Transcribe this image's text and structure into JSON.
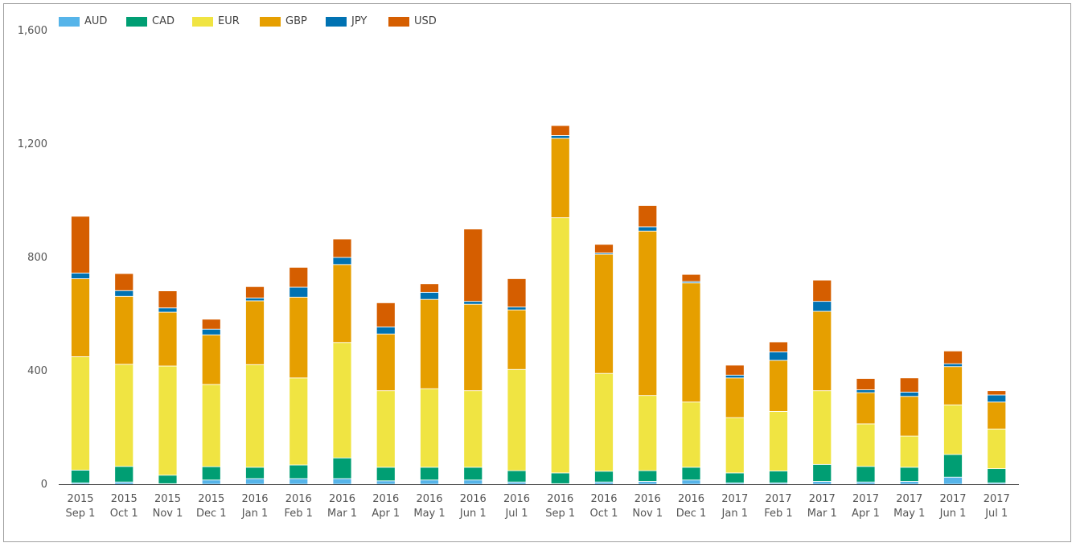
{
  "chart_data": {
    "type": "bar",
    "stacked": true,
    "title": "",
    "xlabel": "",
    "ylabel": "",
    "ylim": [
      0,
      1600
    ],
    "yticks": [
      "0",
      "400",
      "800",
      "1,200",
      "1,600"
    ],
    "ytick_values": [
      0,
      400,
      800,
      1200,
      1600
    ],
    "grid": false,
    "legend_position": "top-left",
    "categories": [
      [
        "2015",
        "Sep 1"
      ],
      [
        "2015",
        "Oct 1"
      ],
      [
        "2015",
        "Nov 1"
      ],
      [
        "2015",
        "Dec 1"
      ],
      [
        "2016",
        "Jan 1"
      ],
      [
        "2016",
        "Feb 1"
      ],
      [
        "2016",
        "Mar 1"
      ],
      [
        "2016",
        "Apr 1"
      ],
      [
        "2016",
        "May 1"
      ],
      [
        "2016",
        "Jun 1"
      ],
      [
        "2016",
        "Jul 1"
      ],
      [
        "2016",
        "Sep 1"
      ],
      [
        "2016",
        "Oct 1"
      ],
      [
        "2016",
        "Nov 1"
      ],
      [
        "2016",
        "Dec 1"
      ],
      [
        "2017",
        "Jan 1"
      ],
      [
        "2017",
        "Feb 1"
      ],
      [
        "2017",
        "Mar 1"
      ],
      [
        "2017",
        "Apr 1"
      ],
      [
        "2017",
        "May 1"
      ],
      [
        "2017",
        "Jun 1"
      ],
      [
        "2017",
        "Jul 1"
      ]
    ],
    "series": [
      {
        "name": "AUD",
        "color": "#56b4e9",
        "values": [
          5,
          8,
          2,
          15,
          20,
          20,
          20,
          12,
          15,
          15,
          8,
          2,
          8,
          10,
          15,
          5,
          5,
          10,
          8,
          10,
          25,
          5
        ]
      },
      {
        "name": "CAD",
        "color": "#009e73",
        "values": [
          45,
          55,
          30,
          47,
          40,
          48,
          73,
          48,
          45,
          45,
          40,
          38,
          38,
          38,
          45,
          35,
          42,
          60,
          55,
          50,
          80,
          50
        ]
      },
      {
        "name": "EUR",
        "color": "#f0e442",
        "values": [
          400,
          360,
          385,
          290,
          362,
          307,
          407,
          270,
          277,
          270,
          357,
          900,
          345,
          265,
          230,
          195,
          210,
          260,
          150,
          110,
          175,
          140
        ]
      },
      {
        "name": "GBP",
        "color": "#e69f00",
        "values": [
          275,
          240,
          190,
          175,
          225,
          285,
          275,
          200,
          315,
          305,
          210,
          280,
          420,
          580,
          420,
          140,
          180,
          280,
          110,
          140,
          135,
          95
        ]
      },
      {
        "name": "JPY",
        "color": "#0072b2",
        "values": [
          20,
          20,
          15,
          20,
          10,
          35,
          25,
          25,
          25,
          10,
          10,
          10,
          5,
          15,
          5,
          10,
          30,
          35,
          10,
          15,
          10,
          25
        ]
      },
      {
        "name": "USD",
        "color": "#d55e00",
        "values": [
          200,
          60,
          60,
          35,
          40,
          70,
          65,
          85,
          30,
          255,
          100,
          35,
          30,
          75,
          25,
          35,
          35,
          75,
          40,
          50,
          45,
          15
        ]
      }
    ]
  }
}
